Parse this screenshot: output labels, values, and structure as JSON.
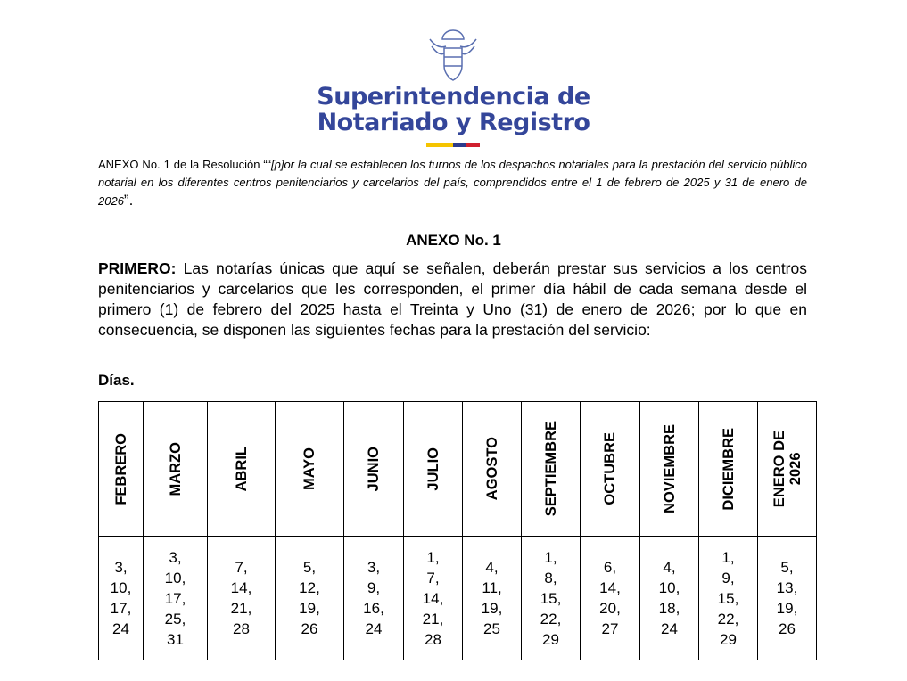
{
  "header": {
    "org_line1": "Superintendencia de",
    "org_line2": "Notariado y Registro"
  },
  "annex_ref": {
    "prefix": "ANEXO No. 1 de la Resolución ““",
    "italic": "[p]or la cual se establecen los turnos de los despachos notariales para la prestación del servicio público notarial en los diferentes centros penitenciarios y carcelarios del país, comprendidos entre el 1 de febrero de 2025 y 31 de enero de 2026",
    "suffix": "”."
  },
  "title": "ANEXO No. 1",
  "paragraph": {
    "lead": "PRIMERO:",
    "text": " Las notarías únicas que aquí se señalen, deberán prestar sus servicios a los centros penitenciarios y carcelarios que les corresponden, el primer día hábil de cada semana desde el primero (1) de febrero del 2025 hasta el Treinta y Uno (31) de enero de 2026; por lo que en consecuencia, se disponen las siguientes fechas para la prestación del servicio:"
  },
  "days_label": "Días.",
  "table": {
    "headers": [
      "FEBRERO",
      "MARZO",
      "ABRIL",
      "MAYO",
      "JUNIO",
      "JULIO",
      "AGOSTO",
      "SEPTIEMBRE",
      "OCTUBRE",
      "NOVIEMBRE",
      "DICIEMBRE",
      [
        "ENERO DE",
        "2026"
      ]
    ],
    "cells": [
      [
        "3,",
        "10,",
        "17,",
        "24"
      ],
      [
        "3,",
        "10,",
        "17,",
        "25,",
        "31"
      ],
      [
        "7,",
        "14,",
        "21,",
        "28"
      ],
      [
        "5,",
        "12,",
        "19,",
        "26"
      ],
      [
        "3,",
        "9,",
        "16,",
        "24"
      ],
      [
        "1,",
        "7,",
        "14,",
        "21,",
        "28"
      ],
      [
        "4,",
        "11,",
        "19,",
        "25"
      ],
      [
        "1,",
        "8,",
        "15,",
        "22,",
        "29"
      ],
      [
        "6,",
        "14,",
        "20,",
        "27"
      ],
      [
        "4,",
        "10,",
        "18,",
        "24"
      ],
      [
        "1,",
        "9,",
        "15,",
        "22,",
        "29"
      ],
      [
        "5,",
        "13,",
        "19,",
        "26"
      ]
    ]
  }
}
